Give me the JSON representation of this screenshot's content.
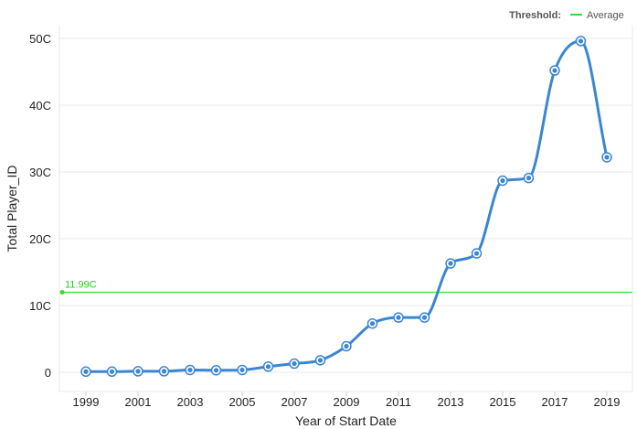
{
  "chart_data": {
    "type": "line",
    "xlabel": "Year of Start Date",
    "ylabel": "Total Player_ID",
    "x": [
      1999,
      2000,
      2001,
      2002,
      2003,
      2004,
      2005,
      2006,
      2007,
      2008,
      2009,
      2010,
      2011,
      2012,
      2013,
      2014,
      2015,
      2016,
      2017,
      2018,
      2019
    ],
    "series": [
      {
        "values": [
          100,
          100,
          150,
          150,
          350,
          300,
          350,
          850,
          1300,
          1800,
          3900,
          7300,
          8200,
          8200,
          16300,
          17800,
          28700,
          29100,
          45200,
          49600,
          32200
        ],
        "color": "#3b86d2"
      }
    ],
    "xticks": [
      "1999",
      "2001",
      "2003",
      "2005",
      "2007",
      "2009",
      "2011",
      "2013",
      "2015",
      "2017",
      "2019"
    ],
    "yticks": [
      {
        "value": 0,
        "label": "0"
      },
      {
        "value": 10000,
        "label": "10C"
      },
      {
        "value": 20000,
        "label": "20C"
      },
      {
        "value": 30000,
        "label": "30C"
      },
      {
        "value": 40000,
        "label": "40C"
      },
      {
        "value": 50000,
        "label": "50C"
      }
    ],
    "ylim": [
      0,
      50000
    ],
    "xlim": [
      1999,
      2019
    ],
    "grid": true,
    "threshold": {
      "value": 11990,
      "label": "11.99C",
      "color": "#33dd33"
    },
    "legend": {
      "title": "Threshold:",
      "entry": "Average",
      "placement": "top-right"
    }
  }
}
